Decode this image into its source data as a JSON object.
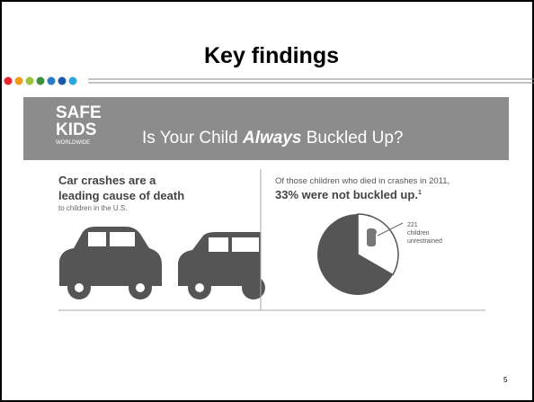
{
  "header": {
    "title": "Key findings"
  },
  "banner": {
    "logo": [
      "SAFE",
      "KIDS",
      "WORLDWIDE"
    ],
    "headline_before": "Is Your Child ",
    "headline_emphasis": "Always",
    "headline_after": " Buckled Up?"
  },
  "left": {
    "heading_lines": [
      "Car crashes are a",
      "leading cause of death"
    ],
    "subtext": "to children in the U.S."
  },
  "right": {
    "intro": "Of those children who died in crashes in 2011,",
    "stat": "33% were not buckled up.",
    "footnote": "1",
    "pie_label": [
      "221",
      "children",
      "unrestrained"
    ]
  },
  "footer": {
    "page_number": "5"
  }
}
